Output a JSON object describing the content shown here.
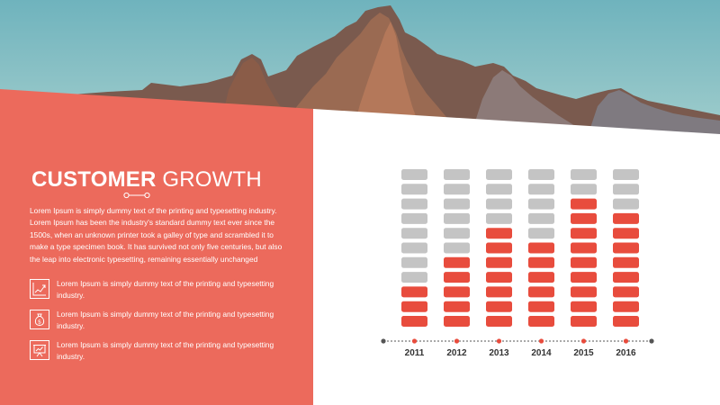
{
  "title": {
    "bold": "CUSTOMER",
    "light": "GROWTH"
  },
  "intro": "Lorem Ipsum is simply dummy text of the printing and typesetting industry. Lorem Ipsum has been the industry's standard dummy text ever since the 1500s, when an unknown printer took a galley of type and scrambled it to make a type specimen book. It has survived not only five centuries, but also the leap into electronic typesetting, remaining essentially unchanged",
  "features": [
    {
      "icon": "growth-chart-icon",
      "text": "Lorem Ipsum is simply dummy text of the printing and typesetting industry."
    },
    {
      "icon": "money-bag-icon",
      "text": "Lorem Ipsum is simply dummy text of the printing and typesetting industry."
    },
    {
      "icon": "presentation-board-icon",
      "text": "Lorem Ipsum is simply dummy text of the printing and typesetting industry."
    }
  ],
  "colors": {
    "accent": "#ec6a5c",
    "filled_block": "#e84c3d",
    "empty_block": "#c4c4c4",
    "axis": "#555555",
    "axis_dot": "#e84c3d",
    "text_dark": "#333333"
  },
  "chart_data": {
    "type": "bar",
    "categories": [
      "2011",
      "2012",
      "2013",
      "2014",
      "2015",
      "2016"
    ],
    "values": [
      3,
      5,
      7,
      6,
      9,
      8
    ],
    "max_blocks": 11,
    "ylim": [
      0,
      11
    ],
    "title": "",
    "xlabel": "",
    "ylabel": "",
    "grid": false,
    "legend": "none"
  }
}
